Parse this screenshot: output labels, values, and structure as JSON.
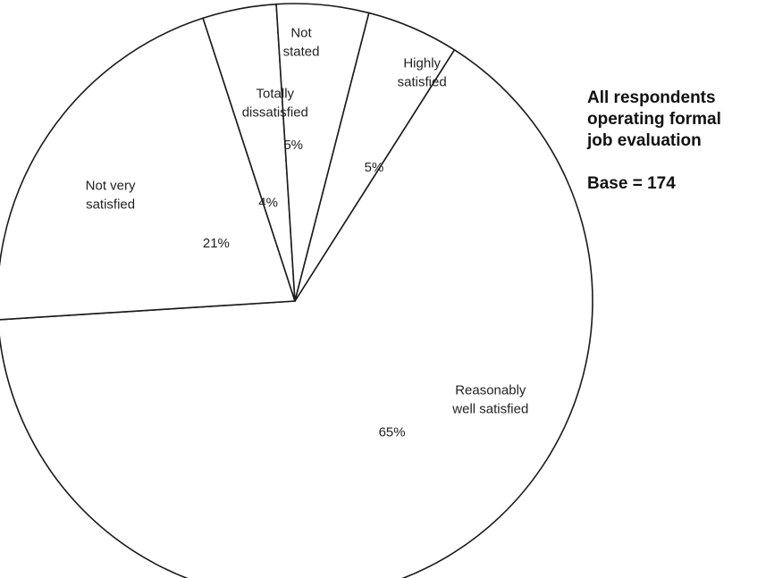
{
  "chart_data": {
    "type": "pie",
    "title": "",
    "slices": [
      {
        "pct_label": "65%",
        "label_lines": [
          "Reasonably",
          "well satisfied"
        ],
        "value": 65
      },
      {
        "pct_label": "21%",
        "label_lines": [
          "Not very",
          "satisfied"
        ],
        "value": 21
      },
      {
        "pct_label": "4%",
        "label_lines": [
          "Totally",
          "dissatisfied"
        ],
        "value": 4
      },
      {
        "pct_label": "5%",
        "label_lines": [
          "Not",
          "stated"
        ],
        "value": 5
      },
      {
        "pct_label": "5%",
        "label_lines": [
          "Highly",
          "satisfied"
        ],
        "value": 5
      }
    ],
    "colors": {
      "fill": "#ffffff",
      "stroke": "#1a1a1a"
    }
  },
  "side_note": {
    "lines": [
      "All respondents",
      "operating formal",
      "job evaluation"
    ],
    "base": "Base = 174"
  }
}
